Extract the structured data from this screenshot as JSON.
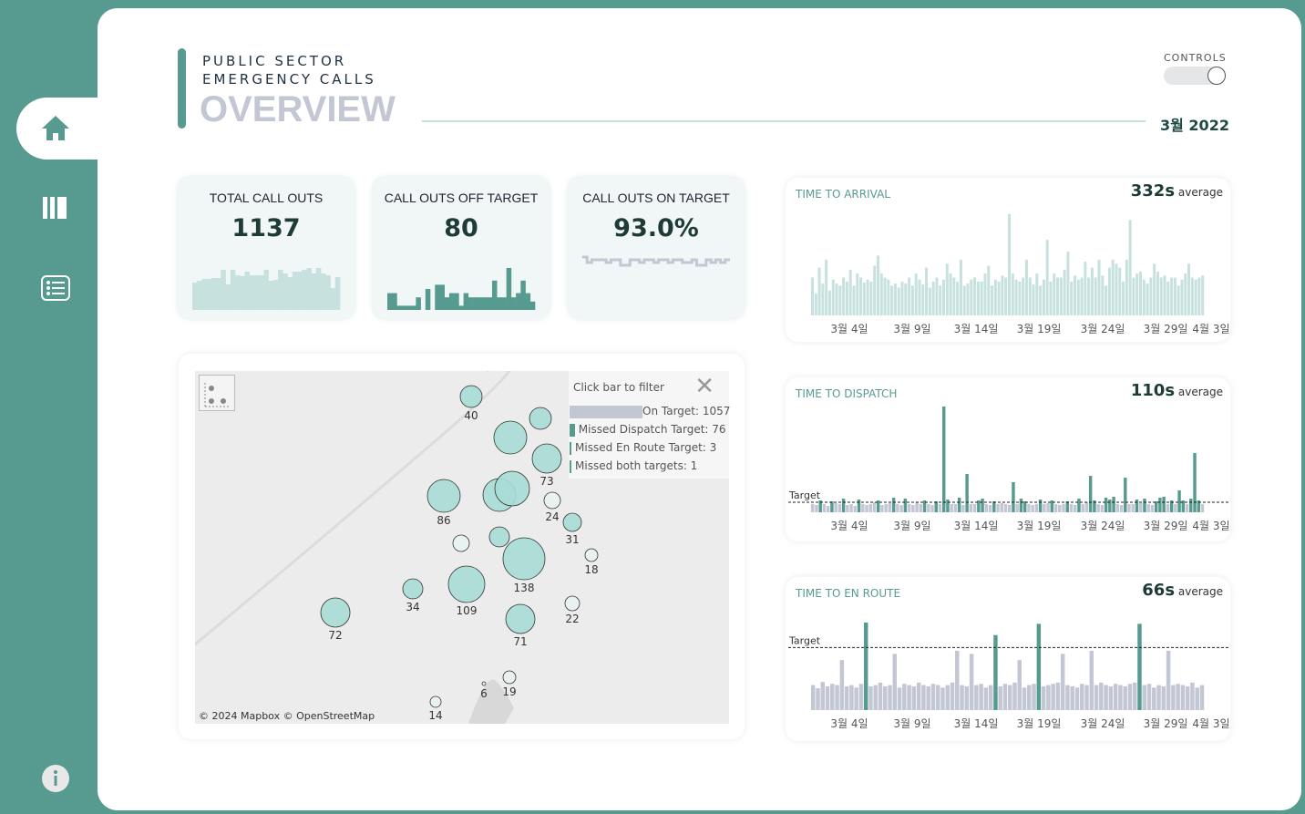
{
  "header": {
    "line1": "PUBLIC SECTOR",
    "line2": "EMERGENCY CALLS",
    "title": "OVERVIEW",
    "month": "3월 2022",
    "controls_label": "CONTROLS"
  },
  "colors": {
    "teal": "#579a8f",
    "light_teal": "#c6e1de",
    "grey": "#c3c6d3"
  },
  "kpis": [
    {
      "label": "TOTAL CALL OUTS",
      "value": "1137",
      "spark": [
        30,
        32,
        34,
        34,
        35,
        35,
        44,
        28,
        44,
        38,
        37,
        42,
        38,
        38,
        38,
        44,
        32,
        33,
        44,
        40,
        36,
        42,
        42,
        44,
        46,
        40,
        46,
        40,
        38,
        24,
        36
      ]
    },
    {
      "label": "CALL OUTS OFF TARGET",
      "value": "80",
      "spark": [
        4,
        4,
        1,
        1,
        1,
        1,
        3,
        0,
        5,
        0,
        6,
        6,
        3,
        4,
        4,
        1,
        4,
        3,
        3,
        3,
        3,
        3,
        7,
        3,
        3,
        10,
        3,
        4,
        7,
        4,
        2
      ]
    },
    {
      "label": "CALL OUTS ON TARGET",
      "value": "93.0%",
      "spark": [
        94,
        92,
        93,
        93,
        93,
        92,
        93,
        93,
        91,
        91,
        93,
        93,
        92,
        93,
        93,
        92,
        93,
        93,
        92,
        93,
        93,
        92,
        92,
        93,
        91,
        91,
        93,
        92,
        93,
        92,
        93
      ]
    }
  ],
  "map": {
    "legend_title": "Click bar to filter",
    "legend": [
      {
        "label": "On Target: 1057",
        "value": 1057
      },
      {
        "label": "Missed Dispatch Target: 76",
        "value": 76
      },
      {
        "label": "Missed En Route Target: 3",
        "value": 3
      },
      {
        "label": "Missed both targets: 1",
        "value": 1
      }
    ],
    "bubble_labels": [
      "40",
      "",
      "",
      "73",
      "86",
      "",
      "",
      "24",
      "31",
      "",
      "",
      "18",
      "138",
      "109",
      "34",
      "72",
      "22",
      "71",
      "19",
      "6",
      "14"
    ],
    "attribution": "© 2024 Mapbox  © OpenStreetMap"
  },
  "charts": [
    {
      "title": "TIME TO ARRIVAL",
      "average": "332s",
      "average_suffix": "average",
      "x_labels": [
        "3월 4일",
        "3월 9일",
        "3월 14일",
        "3월 19일",
        "3월 24일",
        "3월 29일",
        "4월 3일"
      ],
      "values": [
        380,
        220,
        480,
        320,
        560,
        250,
        360,
        320,
        300,
        380,
        340,
        460,
        300,
        420,
        380,
        330,
        360,
        340,
        500,
        600,
        420,
        380,
        360,
        300,
        320,
        280,
        340,
        320,
        380,
        300,
        420,
        360,
        310,
        480,
        280,
        340,
        380,
        300,
        360,
        520,
        420,
        380,
        340,
        560,
        300,
        320,
        360,
        380,
        340,
        340,
        420,
        500,
        300,
        360,
        340,
        400,
        380,
        1020,
        420,
        360,
        340,
        380,
        560,
        380,
        310,
        420,
        300,
        360,
        760,
        340,
        420,
        380,
        380,
        460,
        640,
        340,
        400,
        360,
        380,
        540,
        380,
        480,
        380,
        560,
        400,
        300,
        480,
        560,
        520,
        480,
        340,
        560,
        960,
        380,
        420,
        440,
        360,
        320,
        380,
        520,
        440,
        380,
        400,
        340,
        380,
        380,
        300,
        360,
        420,
        520,
        380,
        360,
        380,
        400
      ]
    },
    {
      "title": "TIME TO DISPATCH",
      "average": "110s",
      "average_suffix": "average",
      "target_label": "Target",
      "target": 110,
      "x_labels": [
        "3월 4일",
        "3월 9일",
        "3월 14일",
        "3월 19일",
        "3월 24일",
        "3월 29일",
        "4월 3일"
      ],
      "values": [
        90,
        80,
        130,
        90,
        70,
        120,
        100,
        90,
        150,
        80,
        90,
        70,
        140,
        90,
        80,
        90,
        110,
        130,
        80,
        90,
        100,
        160,
        90,
        80,
        150,
        90,
        80,
        110,
        90,
        130,
        90,
        80,
        120,
        90,
        1160,
        140,
        90,
        90,
        160,
        80,
        420,
        90,
        90,
        130,
        150,
        90,
        80,
        120,
        90,
        100,
        90,
        80,
        330,
        90,
        150,
        120,
        90,
        80,
        90,
        140,
        90,
        100,
        130,
        90,
        80,
        90,
        120,
        90,
        80,
        150,
        90,
        110,
        400,
        130,
        90,
        80,
        160,
        140,
        170,
        90,
        80,
        380,
        90,
        90,
        140,
        100,
        150,
        90,
        80,
        120,
        160,
        170,
        90,
        130,
        90,
        240,
        130,
        90,
        150,
        650,
        130,
        90
      ]
    },
    {
      "title": "TIME TO EN ROUTE",
      "average": "66s",
      "average_suffix": "average",
      "target_label": "Target",
      "target": 100,
      "x_labels": [
        "3월 4일",
        "3월 9일",
        "3월 14일",
        "3월 19일",
        "3월 24일",
        "3월 29일",
        "4월 3일"
      ],
      "values": [
        40,
        35,
        45,
        38,
        42,
        40,
        80,
        38,
        40,
        36,
        42,
        140,
        38,
        40,
        44,
        38,
        40,
        90,
        36,
        42,
        40,
        38,
        44,
        40,
        38,
        42,
        40,
        36,
        40,
        44,
        95,
        40,
        38,
        90,
        40,
        42,
        36,
        40,
        120,
        38,
        42,
        40,
        44,
        80,
        36,
        40,
        42,
        138,
        38,
        40,
        42,
        44,
        90,
        40,
        38,
        36,
        42,
        40,
        95,
        40,
        44,
        40,
        38,
        42,
        40,
        38,
        42,
        44,
        138,
        40,
        42,
        36,
        40,
        38,
        95,
        40,
        42,
        40,
        38,
        44,
        36,
        40
      ]
    }
  ]
}
